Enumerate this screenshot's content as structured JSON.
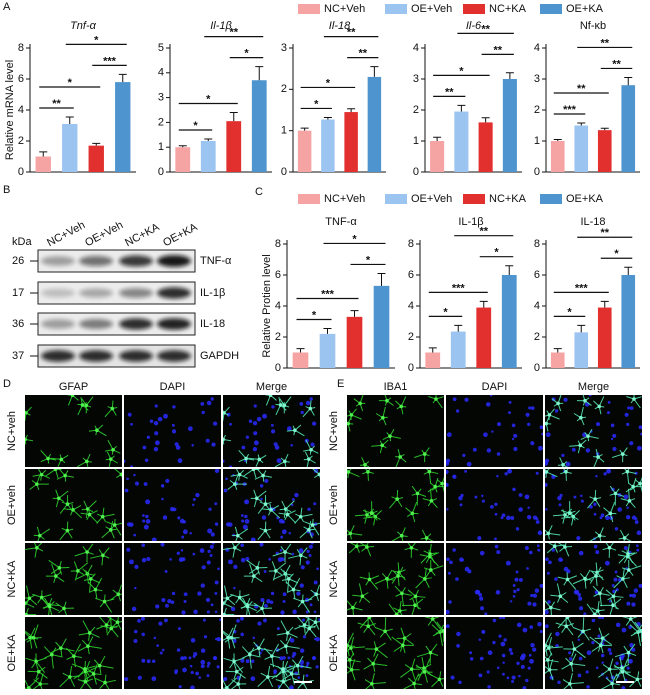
{
  "panels": [
    "A",
    "B",
    "C",
    "D",
    "E"
  ],
  "legend": [
    {
      "name": "NC+Veh",
      "color": "#f6a3a3"
    },
    {
      "name": "OE+Veh",
      "color": "#9cc4f0"
    },
    {
      "name": "NC+KA",
      "color": "#e2302f"
    },
    {
      "name": "OE+KA",
      "color": "#4e95cf"
    }
  ],
  "chart_data": [
    {
      "type": "bar",
      "title": "Tnf-α",
      "title_italic": true,
      "y_label": "Relative mRNA level",
      "ylim": [
        0,
        8
      ],
      "yticks": [
        0,
        2,
        4,
        6,
        8
      ],
      "values": [
        1.0,
        3.1,
        1.7,
        5.8
      ],
      "errors": [
        0.3,
        0.45,
        0.15,
        0.5
      ],
      "significance": [
        {
          "bars": [
            0,
            1
          ],
          "label": "**"
        },
        {
          "bars": [
            0,
            2
          ],
          "label": "*"
        },
        {
          "bars": [
            2,
            3
          ],
          "label": "***"
        },
        {
          "bars": [
            1,
            3
          ],
          "label": "*"
        }
      ]
    },
    {
      "type": "bar",
      "title": "Il-1β",
      "title_italic": true,
      "ylim": [
        0,
        5
      ],
      "yticks": [
        0,
        1,
        2,
        3,
        4,
        5
      ],
      "values": [
        1.0,
        1.25,
        2.05,
        3.7
      ],
      "errors": [
        0.06,
        0.08,
        0.35,
        0.55
      ],
      "significance": [
        {
          "bars": [
            0,
            1
          ],
          "label": "*"
        },
        {
          "bars": [
            0,
            2
          ],
          "label": "*"
        },
        {
          "bars": [
            2,
            3
          ],
          "label": "*"
        },
        {
          "bars": [
            1,
            3
          ],
          "label": "**"
        }
      ]
    },
    {
      "type": "bar",
      "title": "Il-18",
      "title_italic": true,
      "ylim": [
        0,
        3
      ],
      "yticks": [
        0,
        1,
        2,
        3
      ],
      "values": [
        1.0,
        1.27,
        1.45,
        2.3
      ],
      "errors": [
        0.06,
        0.05,
        0.08,
        0.25
      ],
      "significance": [
        {
          "bars": [
            0,
            1
          ],
          "label": "*"
        },
        {
          "bars": [
            0,
            2
          ],
          "label": "*"
        },
        {
          "bars": [
            2,
            3
          ],
          "label": "**"
        },
        {
          "bars": [
            1,
            3
          ],
          "label": "**"
        }
      ]
    },
    {
      "type": "bar",
      "title": "Il-6",
      "title_italic": true,
      "ylim": [
        0,
        4
      ],
      "yticks": [
        0,
        1,
        2,
        3,
        4
      ],
      "values": [
        1.0,
        1.95,
        1.6,
        3.0
      ],
      "errors": [
        0.12,
        0.2,
        0.15,
        0.2
      ],
      "significance": [
        {
          "bars": [
            0,
            1
          ],
          "label": "**"
        },
        {
          "bars": [
            0,
            2
          ],
          "label": "*"
        },
        {
          "bars": [
            2,
            3
          ],
          "label": "**"
        },
        {
          "bars": [
            1,
            3
          ],
          "label": "**"
        }
      ]
    },
    {
      "type": "bar",
      "title": "Nf-κb",
      "title_italic": false,
      "ylim": [
        0,
        4
      ],
      "yticks": [
        0,
        1,
        2,
        3,
        4
      ],
      "values": [
        1.0,
        1.5,
        1.35,
        2.8
      ],
      "errors": [
        0.05,
        0.08,
        0.06,
        0.25
      ],
      "significance": [
        {
          "bars": [
            0,
            1
          ],
          "label": "***"
        },
        {
          "bars": [
            0,
            2
          ],
          "label": "**"
        },
        {
          "bars": [
            2,
            3
          ],
          "label": "**"
        },
        {
          "bars": [
            1,
            3
          ],
          "label": "**"
        }
      ]
    },
    {
      "type": "bar",
      "title": "TNF-α",
      "title_italic": false,
      "y_label": "Relative Protien level",
      "ylim": [
        0,
        8
      ],
      "yticks": [
        0,
        2,
        4,
        6,
        8
      ],
      "values": [
        1.0,
        2.2,
        3.3,
        5.3
      ],
      "errors": [
        0.25,
        0.35,
        0.4,
        0.8
      ],
      "significance": [
        {
          "bars": [
            0,
            1
          ],
          "label": "*"
        },
        {
          "bars": [
            0,
            2
          ],
          "label": "***"
        },
        {
          "bars": [
            2,
            3
          ],
          "label": "*"
        },
        {
          "bars": [
            1,
            3
          ],
          "label": "*"
        }
      ]
    },
    {
      "type": "bar",
      "title": "IL-1β",
      "title_italic": false,
      "ylim": [
        0,
        8
      ],
      "yticks": [
        0,
        2,
        4,
        6,
        8
      ],
      "values": [
        1.0,
        2.35,
        3.9,
        6.0
      ],
      "errors": [
        0.3,
        0.4,
        0.4,
        0.6
      ],
      "significance": [
        {
          "bars": [
            0,
            1
          ],
          "label": "*"
        },
        {
          "bars": [
            0,
            2
          ],
          "label": "***"
        },
        {
          "bars": [
            2,
            3
          ],
          "label": "*"
        },
        {
          "bars": [
            1,
            3
          ],
          "label": "**"
        }
      ]
    },
    {
      "type": "bar",
      "title": "IL-18",
      "title_italic": false,
      "ylim": [
        0,
        8
      ],
      "yticks": [
        0,
        2,
        4,
        6,
        8
      ],
      "values": [
        1.0,
        2.3,
        3.9,
        6.0
      ],
      "errors": [
        0.25,
        0.45,
        0.4,
        0.5
      ],
      "significance": [
        {
          "bars": [
            0,
            1
          ],
          "label": "*"
        },
        {
          "bars": [
            0,
            2
          ],
          "label": "***"
        },
        {
          "bars": [
            2,
            3
          ],
          "label": "*"
        },
        {
          "bars": [
            1,
            3
          ],
          "label": "**"
        }
      ]
    }
  ],
  "blot": {
    "unit": "kDa",
    "lanes": [
      "NC+Veh",
      "OE+Veh",
      "NC+KA",
      "OE+KA"
    ],
    "rows": [
      {
        "kda": "26",
        "label": "TNF-α"
      },
      {
        "kda": "17",
        "label": "IL-1β"
      },
      {
        "kda": "36",
        "label": "IL-18"
      },
      {
        "kda": "37",
        "label": "GAPDH"
      }
    ]
  },
  "staining": [
    {
      "channels": [
        {
          "name": "GFAP",
          "color": "#2fd12f"
        },
        {
          "name": "DAPI",
          "color": "#3b3bff"
        },
        {
          "name": "Merge",
          "color": "#2ad6d6"
        }
      ],
      "rows": [
        "NC+veh",
        "OE+veh",
        "NC+KA",
        "OE+KA"
      ]
    },
    {
      "channels": [
        {
          "name": "IBA1",
          "color": "#2fd12f"
        },
        {
          "name": "DAPI",
          "color": "#3b3bff"
        },
        {
          "name": "Merge",
          "color": "#2ad6d6"
        }
      ],
      "rows": [
        "NC+veh",
        "OE+veh",
        "NC+KA",
        "OE+KA"
      ]
    }
  ]
}
